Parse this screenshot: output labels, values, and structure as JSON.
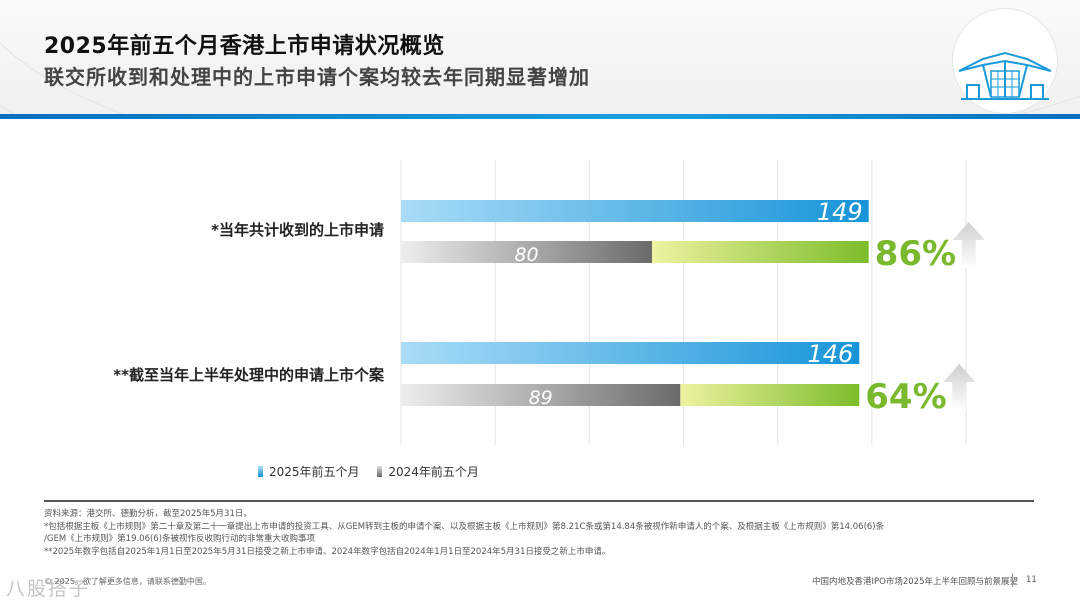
{
  "header": {
    "title": "2025年前五个月香港上市申请状况概览",
    "subtitle": "联交所收到和处理中的上市申请个案均较去年同期显著增加"
  },
  "chart_data": {
    "type": "bar",
    "orientation": "horizontal",
    "xlim": [
      0,
      180
    ],
    "grid": true,
    "categories": [
      "*当年共计收到的上市申请",
      "**截至当年上半年处理中的申请上市个案"
    ],
    "series": [
      {
        "name": "2025年前五个月",
        "values": [
          149,
          146
        ],
        "labels": [
          "149",
          "146"
        ]
      },
      {
        "name": "2024年前五个月",
        "values": [
          80,
          89
        ],
        "labels": [
          "80",
          "89"
        ]
      }
    ],
    "annotations": [
      {
        "category": "*当年共计收到的上市申请",
        "text": "86%",
        "direction": "up"
      },
      {
        "category": "**截至当年上半年处理中的申请上市个案",
        "text": "64%",
        "direction": "up"
      }
    ],
    "colors": {
      "series_2025": [
        "#a9dcf7",
        "#1794d8"
      ],
      "series_2024": [
        "#eeeeee",
        "#6a6a6a"
      ],
      "increase": [
        "#eef2a0",
        "#7cbd2a"
      ],
      "pct_text": "#7ab82e",
      "arrow": "#dcdcdc",
      "grid": "#e3e3e3"
    }
  },
  "legend": {
    "items": [
      {
        "label": "2025年前五个月",
        "color": "#1794d8"
      },
      {
        "label": "2024年前五个月",
        "color": "#6a6a6a"
      }
    ]
  },
  "footer": {
    "notes": [
      "资料来源：港交所、德勤分析，截至2025年5月31日。",
      "*包括根据主板《上市规则》第二十章及第二十一章提出上市申请的投资工具、从GEM转到主板的申请个案、以及根据主板《上市规则》第8.21C条或第14.84条被视作新申请人的个案、及根据主板《上市规则》第14.06(6)条",
      "/GEM《上市规则》第19.06(6)条被视作反收购行动的非常重大收购事项",
      "**2025年数字包括自2025年1月1日至2025年5月31日接受之新上市申请、2024年数字包括自2024年1月1日至2024年5月31日接受之新上市申请。"
    ],
    "copyright": "© 2025。欲了解更多信息，请联系德勤中国。",
    "watermark": "八股搭子",
    "report_title": "中国内地及香港IPO市场2025年上半年回顾与前景展望",
    "page_number": "11"
  }
}
